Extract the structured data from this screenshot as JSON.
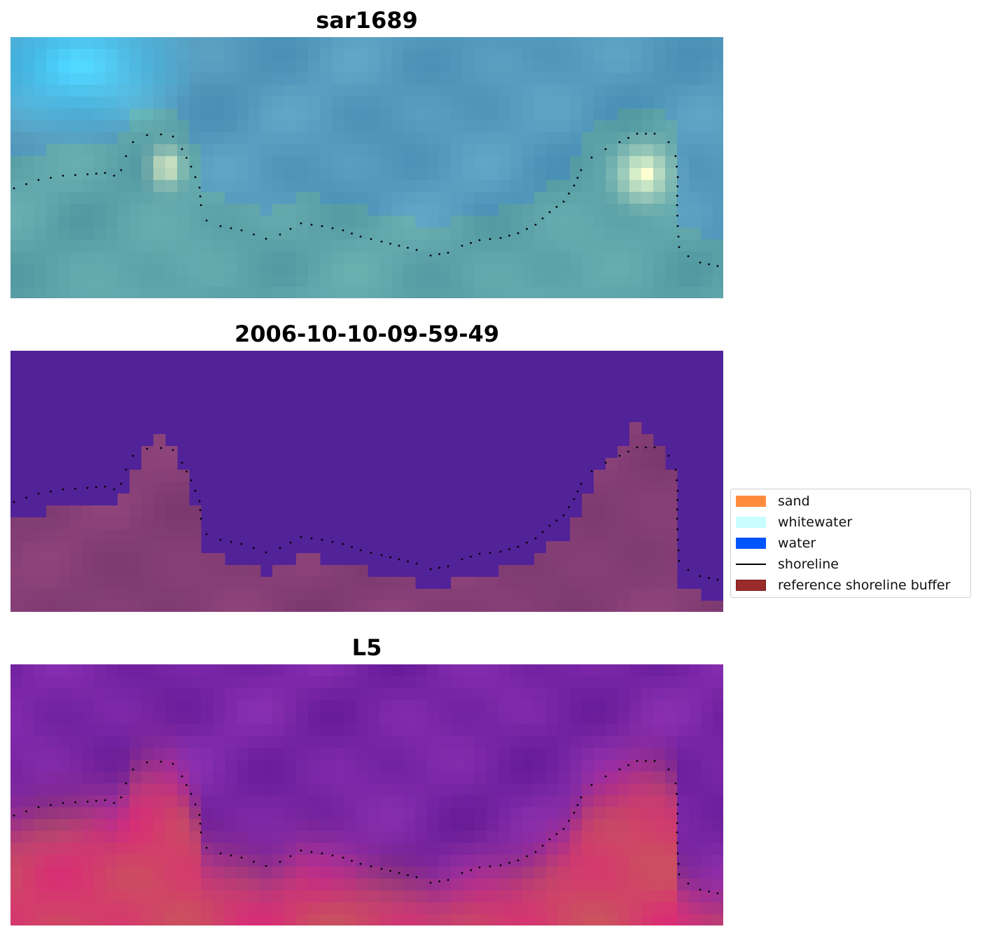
{
  "panels": [
    {
      "title": "sar1689",
      "scheme": "rgb"
    },
    {
      "title": "2006-10-10-09-59-49",
      "scheme": "classified"
    },
    {
      "title": "L5",
      "scheme": "index"
    }
  ],
  "legend": {
    "items": [
      {
        "label": "sand",
        "color": "#ff8c3c",
        "kind": "patch"
      },
      {
        "label": "whitewater",
        "color": "#c8fdff",
        "kind": "patch"
      },
      {
        "label": "water",
        "color": "#0055ff",
        "kind": "patch"
      },
      {
        "label": "shoreline",
        "color": "#000000",
        "kind": "line"
      },
      {
        "label": "reference shoreline buffer",
        "color": "#9b2a2a",
        "kind": "patch"
      }
    ]
  },
  "colors": {
    "classified_water": "#512298",
    "classified_land": "#7a3a74",
    "shoreline_dots": "#000000"
  }
}
